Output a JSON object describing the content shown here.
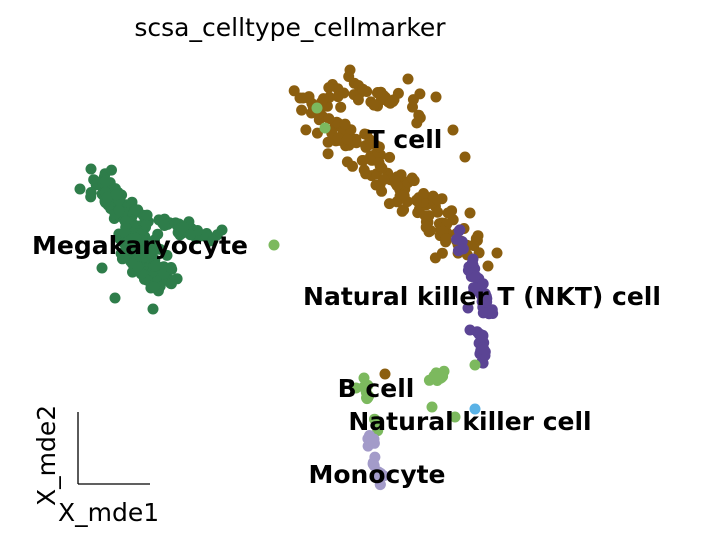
{
  "chart_data": {
    "type": "scatter",
    "title": "scsa_celltype_cellmarker",
    "xlabel": "X_mde1",
    "ylabel": "X_mde2",
    "legend": "on data",
    "grid": false,
    "series": [
      {
        "name": "T cell",
        "color": "#8B5E0F",
        "label_at": [
          405,
          139
        ]
      },
      {
        "name": "Megakaryocyte",
        "color": "#2E7D4A",
        "label_at": [
          140,
          245
        ]
      },
      {
        "name": "Natural killer T (NKT) cell",
        "color": "#5B4494",
        "label_at": [
          482,
          296
        ]
      },
      {
        "name": "B cell",
        "color": "#7CB95E",
        "label_at": [
          376,
          388
        ]
      },
      {
        "name": "Natural killer cell",
        "color": "#5AB2E6",
        "label_at": [
          470,
          421
        ]
      },
      {
        "name": "Monocyte",
        "color": "#A39BC9",
        "label_at": [
          377,
          474
        ]
      }
    ]
  }
}
